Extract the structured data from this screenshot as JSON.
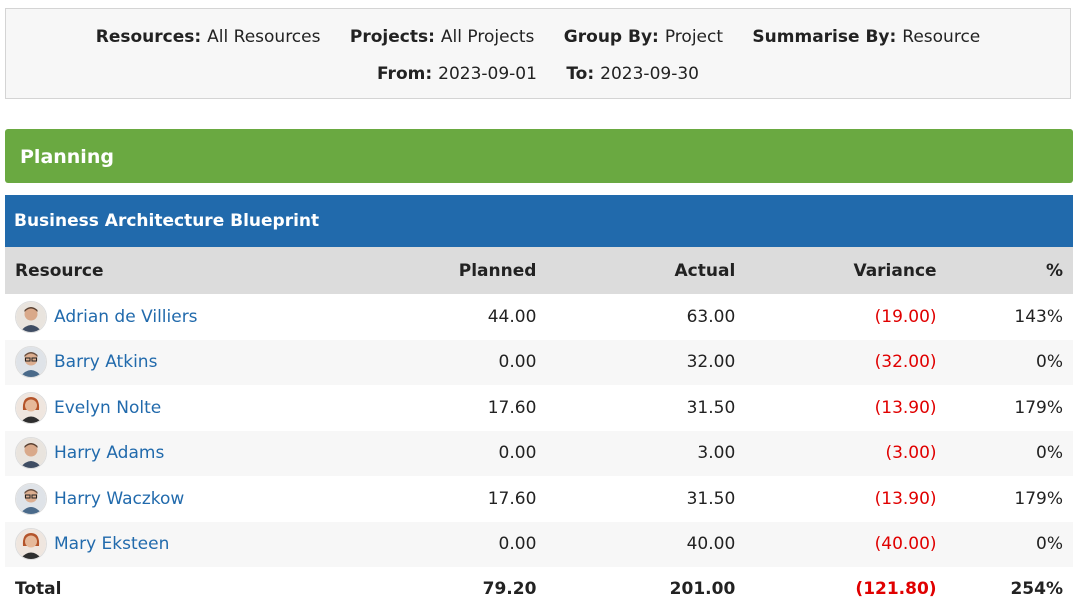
{
  "filters": [
    {
      "label": "Resources:",
      "value": "All Resources"
    },
    {
      "label": "Projects:",
      "value": "All Projects"
    },
    {
      "label": "Group By:",
      "value": "Project"
    },
    {
      "label": "Summarise By:",
      "value": "Resource"
    },
    {
      "label": "From:",
      "value": "2023-09-01"
    },
    {
      "label": "To:",
      "value": "2023-09-30"
    }
  ],
  "group": {
    "title": "Planning",
    "color": "#6aa941"
  },
  "project": {
    "title": "Business Architecture Blueprint",
    "color": "#216aac"
  },
  "columns": {
    "resource": "Resource",
    "planned": "Planned",
    "actual": "Actual",
    "variance": "Variance",
    "pct": "%"
  },
  "rows": [
    {
      "name": "Adrian de Villiers",
      "planned": "44.00",
      "actual": "63.00",
      "variance": "(19.00)",
      "pct": "143%",
      "avatar": "man-avatar"
    },
    {
      "name": "Barry Atkins",
      "planned": "0.00",
      "actual": "32.00",
      "variance": "(32.00)",
      "pct": "0%",
      "avatar": "man-glasses-avatar"
    },
    {
      "name": "Evelyn Nolte",
      "planned": "17.60",
      "actual": "31.50",
      "variance": "(13.90)",
      "pct": "179%",
      "avatar": "woman-avatar"
    },
    {
      "name": "Harry Adams",
      "planned": "0.00",
      "actual": "3.00",
      "variance": "(3.00)",
      "pct": "0%",
      "avatar": "man-avatar"
    },
    {
      "name": "Harry Waczkow",
      "planned": "17.60",
      "actual": "31.50",
      "variance": "(13.90)",
      "pct": "179%",
      "avatar": "man-glasses-avatar"
    },
    {
      "name": "Mary Eksteen",
      "planned": "0.00",
      "actual": "40.00",
      "variance": "(40.00)",
      "pct": "0%",
      "avatar": "woman-avatar"
    }
  ],
  "total": {
    "label": "Total",
    "planned": "79.20",
    "actual": "201.00",
    "variance": "(121.80)",
    "pct": "254%"
  },
  "colors": {
    "negative": "#e00000",
    "link": "#216aac"
  }
}
